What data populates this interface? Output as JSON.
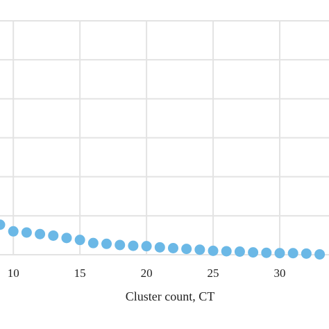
{
  "chart_data": {
    "type": "scatter",
    "title": "",
    "xlabel": "Cluster count, CT",
    "ylabel": "",
    "xlim": [
      9,
      33.7
    ],
    "ylim": [
      0,
      6
    ],
    "x_ticks": [
      10,
      15,
      20,
      25,
      30
    ],
    "x_tick_labels": [
      "10",
      "15",
      "20",
      "25",
      "30"
    ],
    "grid": true,
    "legend": "none",
    "series": [
      {
        "marker_color": "#6bb8e6",
        "x": [
          9,
          10,
          11,
          12,
          13,
          14,
          15,
          16,
          17,
          18,
          19,
          20,
          21,
          22,
          23,
          24,
          25,
          26,
          27,
          28,
          29,
          30,
          31,
          32,
          33
        ],
        "y": [
          0.77,
          0.6,
          0.57,
          0.53,
          0.49,
          0.43,
          0.38,
          0.3,
          0.28,
          0.25,
          0.23,
          0.22,
          0.19,
          0.17,
          0.15,
          0.13,
          0.1,
          0.09,
          0.08,
          0.06,
          0.05,
          0.04,
          0.04,
          0.03,
          0.01
        ]
      }
    ]
  }
}
